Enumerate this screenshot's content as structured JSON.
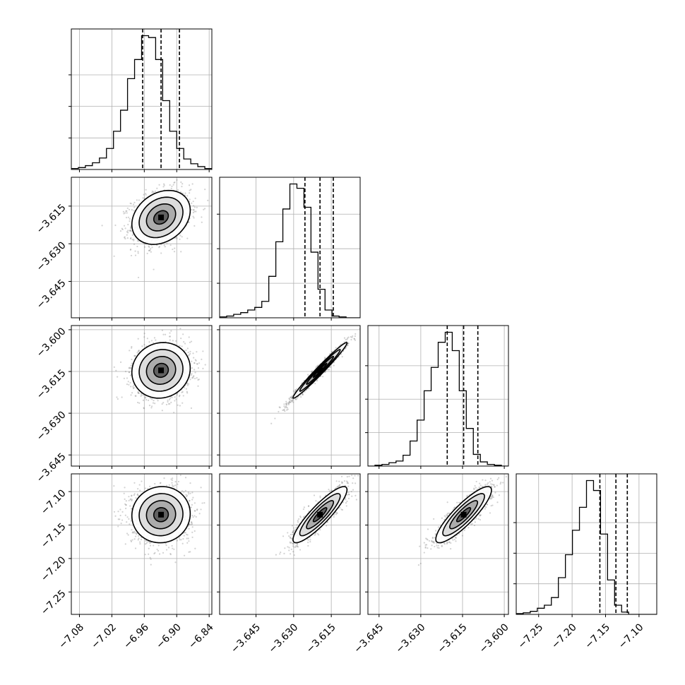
{
  "chart_data": {
    "type": "corner",
    "grid": true,
    "n_params": 4,
    "bins": 20,
    "quantiles": [
      0.16,
      0.5,
      0.84
    ],
    "colors": {
      "line": "#000000",
      "grid": "#b0b0b0",
      "scatter": "#7f7f7f",
      "frame": "#000000"
    },
    "params": [
      {
        "range": [
          -7.095,
          -6.835
        ],
        "ticks": [
          -7.08,
          -7.02,
          -6.96,
          -6.9,
          -6.84
        ],
        "tick_labels": [
          "−7.08",
          "−7.02",
          "−6.96",
          "−6.90",
          "−6.84"
        ],
        "quantile_values": [
          -6.963,
          -6.929,
          -6.895
        ],
        "hist": [
          1,
          2,
          4,
          7,
          12,
          22,
          40,
          62,
          95,
          115,
          140,
          138,
          115,
          72,
          40,
          22,
          11,
          6,
          3,
          1
        ],
        "hist_yticks": [
          33,
          66,
          99
        ]
      },
      {
        "range": [
          -3.6595,
          -3.6035
        ],
        "ticks": [
          -3.645,
          -3.63,
          -3.615
        ],
        "tick_labels": [
          "−3.645",
          "−3.630",
          "−3.615"
        ],
        "quantile_values": [
          -3.6255,
          -3.6195,
          -3.6142
        ],
        "hist": [
          1,
          2,
          4,
          6,
          9,
          12,
          19,
          48,
          88,
          126,
          155,
          150,
          128,
          76,
          33,
          9,
          2,
          1,
          0,
          0
        ],
        "hist_yticks": [
          40,
          80,
          120
        ]
      },
      {
        "range": [
          -3.649,
          -3.5985
        ],
        "ticks": [
          -3.645,
          -3.63,
          -3.615,
          -3.6
        ],
        "tick_labels": [
          "−3.645",
          "−3.630",
          "−3.615",
          "−3.600"
        ],
        "quantile_values": [
          -3.6205,
          -3.6146,
          -3.6095
        ],
        "hist": [
          0,
          1,
          2,
          4,
          6,
          13,
          30,
          55,
          90,
          118,
          148,
          160,
          138,
          90,
          45,
          14,
          5,
          2,
          1,
          0
        ],
        "hist_yticks": [
          40,
          80,
          120
        ]
      },
      {
        "range": [
          -7.2835,
          -7.0735
        ],
        "ticks": [
          -7.25,
          -7.2,
          -7.15,
          -7.1
        ],
        "tick_labels": [
          "−7.25",
          "−7.20",
          "−7.15",
          "−7.10"
        ],
        "quantile_values": [
          -7.1585,
          -7.1345,
          -7.1175
        ],
        "hist": [
          1,
          2,
          4,
          8,
          12,
          22,
          48,
          78,
          110,
          140,
          175,
          162,
          105,
          45,
          12,
          3,
          0,
          0,
          0,
          0
        ],
        "hist_yticks": [
          40,
          80,
          120
        ]
      }
    ],
    "pairs": [
      {
        "row": 1,
        "col": 0,
        "cov": [
          [
            0.000729,
            3.8e-05
          ],
          [
            3.8e-05,
            2.89e-05
          ]
        ],
        "mean": [
          -6.929,
          -3.6195
        ]
      },
      {
        "row": 2,
        "col": 0,
        "cov": [
          [
            0.000729,
            1e-05
          ],
          [
            1e-05,
            2.5e-05
          ]
        ],
        "mean": [
          -6.929,
          -3.6146
        ]
      },
      {
        "row": 2,
        "col": 1,
        "cov": [
          [
            2.89e-05,
            2.64e-05
          ],
          [
            2.64e-05,
            2.5e-05
          ]
        ],
        "mean": [
          -3.6195,
          -3.6146
        ]
      },
      {
        "row": 3,
        "col": 0,
        "cov": [
          [
            0.000729,
            2e-05
          ],
          [
            2e-05,
            0.000441
          ]
        ],
        "mean": [
          -6.929,
          -7.1345
        ]
      },
      {
        "row": 3,
        "col": 1,
        "cov": [
          [
            2.89e-05,
            0.0001
          ],
          [
            0.0001,
            0.000441
          ]
        ],
        "mean": [
          -3.6195,
          -7.1345
        ]
      },
      {
        "row": 3,
        "col": 2,
        "cov": [
          [
            2.5e-05,
            9.14e-05
          ],
          [
            9.14e-05,
            0.000441
          ]
        ],
        "mean": [
          -3.6146,
          -7.1345
        ]
      }
    ]
  }
}
